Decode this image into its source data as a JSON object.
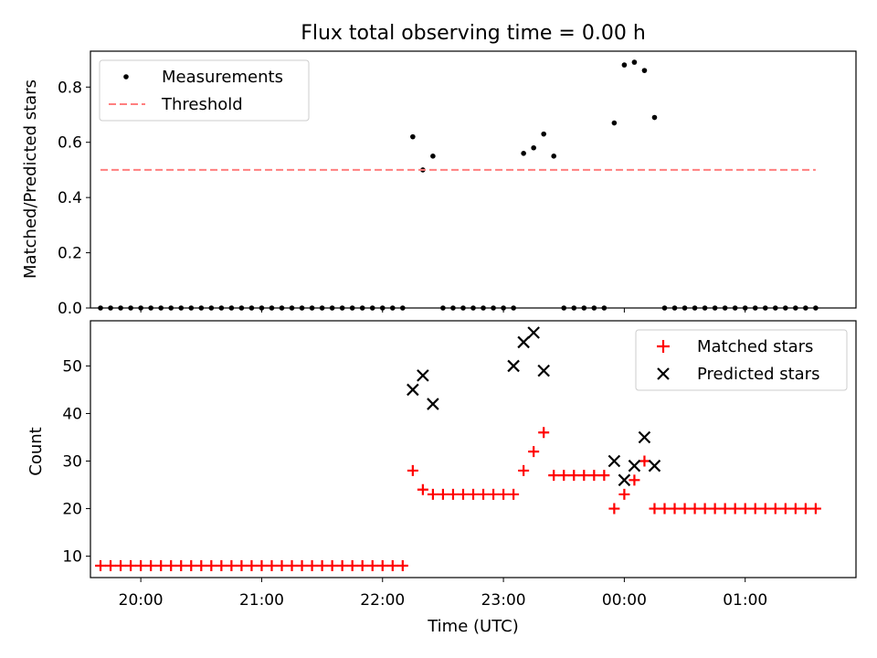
{
  "chart_data": [
    {
      "type": "scatter",
      "title": "Flux total observing time = 0.00 h",
      "xlabel": "",
      "ylabel": "Matched/Predicted stars",
      "ylim": [
        0,
        0.93
      ],
      "yticks": [
        0.0,
        0.2,
        0.4,
        0.6,
        0.8
      ],
      "ytick_labels": [
        "0.0",
        "0.2",
        "0.4",
        "0.6",
        "0.8"
      ],
      "xlim": [
        "19:35",
        "01:55"
      ],
      "xticks": [
        "20:00",
        "21:00",
        "22:00",
        "23:00",
        "00:00",
        "01:00"
      ],
      "legend": "top-left",
      "series": [
        {
          "name": "Measurements",
          "style": "dots",
          "color": "#000000",
          "x": [
            "19:40",
            "19:45",
            "19:50",
            "19:55",
            "20:00",
            "20:05",
            "20:10",
            "20:15",
            "20:20",
            "20:25",
            "20:30",
            "20:35",
            "20:40",
            "20:45",
            "20:50",
            "20:55",
            "21:00",
            "21:05",
            "21:10",
            "21:15",
            "21:20",
            "21:25",
            "21:30",
            "21:35",
            "21:40",
            "21:45",
            "21:50",
            "21:55",
            "22:00",
            "22:05",
            "22:10",
            "22:15",
            "22:20",
            "22:25",
            "22:30",
            "22:35",
            "22:40",
            "22:45",
            "22:50",
            "22:55",
            "23:00",
            "23:05",
            "23:10",
            "23:15",
            "23:20",
            "23:25",
            "23:30",
            "23:35",
            "23:40",
            "23:45",
            "23:50",
            "23:55",
            "00:00",
            "00:05",
            "00:10",
            "00:15",
            "00:20",
            "00:25",
            "00:30",
            "00:35",
            "00:40",
            "00:45",
            "00:50",
            "00:55",
            "01:00",
            "01:05",
            "01:10",
            "01:15",
            "01:20",
            "01:25",
            "01:30",
            "01:35"
          ],
          "y": [
            0,
            0,
            0,
            0,
            0,
            0,
            0,
            0,
            0,
            0,
            0,
            0,
            0,
            0,
            0,
            0,
            0,
            0,
            0,
            0,
            0,
            0,
            0,
            0,
            0,
            0,
            0,
            0,
            0,
            0,
            0,
            0.62,
            0.5,
            0.55,
            0,
            0,
            0,
            0,
            0,
            0,
            0,
            0,
            0.56,
            0.58,
            0.63,
            0.55,
            0,
            0,
            0,
            0,
            0,
            0.67,
            0.88,
            0.89,
            0.86,
            0.69,
            0,
            0,
            0,
            0,
            0,
            0,
            0,
            0,
            0,
            0,
            0,
            0,
            0,
            0,
            0,
            0
          ]
        },
        {
          "name": "Threshold",
          "style": "dashed",
          "color": "#ff7f7f",
          "x": [
            "19:40",
            "01:35"
          ],
          "y": [
            0.5,
            0.5
          ]
        }
      ]
    },
    {
      "type": "scatter",
      "title": "",
      "xlabel": "Time (UTC)",
      "ylabel": "Count",
      "ylim": [
        5.5,
        59.5
      ],
      "yticks": [
        10,
        20,
        30,
        40,
        50
      ],
      "ytick_labels": [
        "10",
        "20",
        "30",
        "40",
        "50"
      ],
      "xlim": [
        "19:35",
        "01:55"
      ],
      "xticks": [
        "20:00",
        "21:00",
        "22:00",
        "23:00",
        "00:00",
        "01:00"
      ],
      "xtick_labels": [
        "20:00",
        "21:00",
        "22:00",
        "23:00",
        "00:00",
        "01:00"
      ],
      "legend": "top-right",
      "series": [
        {
          "name": "Matched stars",
          "style": "plus",
          "color": "#ff0000",
          "x": [
            "19:40",
            "19:45",
            "19:50",
            "19:55",
            "20:00",
            "20:05",
            "20:10",
            "20:15",
            "20:20",
            "20:25",
            "20:30",
            "20:35",
            "20:40",
            "20:45",
            "20:50",
            "20:55",
            "21:00",
            "21:05",
            "21:10",
            "21:15",
            "21:20",
            "21:25",
            "21:30",
            "21:35",
            "21:40",
            "21:45",
            "21:50",
            "21:55",
            "22:00",
            "22:05",
            "22:10",
            "22:15",
            "22:20",
            "22:25",
            "22:30",
            "22:35",
            "22:40",
            "22:45",
            "22:50",
            "22:55",
            "23:00",
            "23:05",
            "23:10",
            "23:15",
            "23:20",
            "23:25",
            "23:30",
            "23:35",
            "23:40",
            "23:45",
            "23:50",
            "23:55",
            "00:00",
            "00:05",
            "00:10",
            "00:15",
            "00:20",
            "00:25",
            "00:30",
            "00:35",
            "00:40",
            "00:45",
            "00:50",
            "00:55",
            "01:00",
            "01:05",
            "01:10",
            "01:15",
            "01:20",
            "01:25",
            "01:30",
            "01:35"
          ],
          "y": [
            8,
            8,
            8,
            8,
            8,
            8,
            8,
            8,
            8,
            8,
            8,
            8,
            8,
            8,
            8,
            8,
            8,
            8,
            8,
            8,
            8,
            8,
            8,
            8,
            8,
            8,
            8,
            8,
            8,
            8,
            8,
            28,
            24,
            23,
            23,
            23,
            23,
            23,
            23,
            23,
            23,
            23,
            28,
            32,
            36,
            27,
            27,
            27,
            27,
            27,
            27,
            20,
            23,
            26,
            30,
            20,
            20,
            20,
            20,
            20,
            20,
            20,
            20,
            20,
            20,
            20,
            20,
            20,
            20,
            20,
            20,
            20
          ]
        },
        {
          "name": "Predicted stars",
          "style": "x",
          "color": "#000000",
          "x": [
            "22:15",
            "22:20",
            "22:25",
            "23:05",
            "23:10",
            "23:15",
            "23:20",
            "23:55",
            "00:00",
            "00:05",
            "00:10",
            "00:15"
          ],
          "y": [
            45,
            48,
            42,
            50,
            55,
            57,
            49,
            30,
            26,
            29,
            35,
            29
          ]
        }
      ]
    }
  ]
}
